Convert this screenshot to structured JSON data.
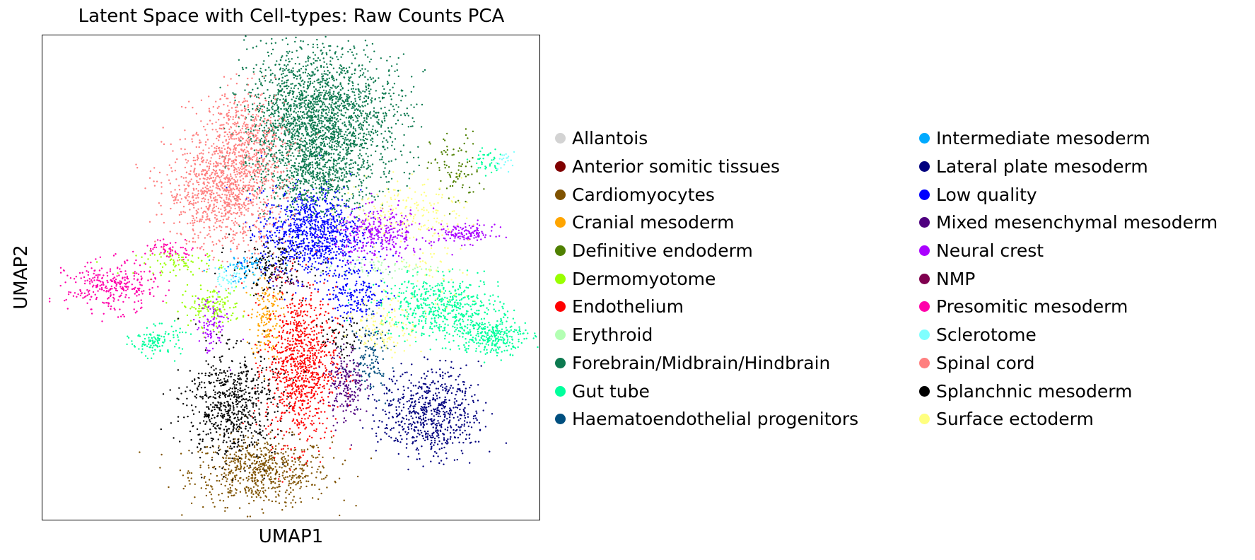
{
  "chart_data": {
    "type": "scatter",
    "title": "Latent Space with Cell-types: Raw Counts PCA",
    "xlabel": "UMAP1",
    "ylabel": "UMAP2",
    "xlim": [
      0,
      1
    ],
    "ylim": [
      0,
      1
    ],
    "grid": false,
    "ticks": false,
    "legend_position": "right",
    "legend_columns": 2,
    "series": [
      {
        "name": "Allantois",
        "color": "#d3d3d3",
        "clusters": []
      },
      {
        "name": "Anterior somitic tissues",
        "color": "#800000",
        "clusters": []
      },
      {
        "name": "Cardiomyocytes",
        "color": "#7f5200",
        "clusters": [
          {
            "x": 0.44,
            "y": 0.1,
            "sx": 0.07,
            "sy": 0.035,
            "n": 650
          }
        ]
      },
      {
        "name": "Cranial mesoderm",
        "color": "#ffa500",
        "clusters": [
          {
            "x": 0.45,
            "y": 0.42,
            "sx": 0.015,
            "sy": 0.045,
            "n": 160
          }
        ]
      },
      {
        "name": "Definitive endoderm",
        "color": "#4f8000",
        "clusters": [
          {
            "x": 0.83,
            "y": 0.72,
            "sx": 0.025,
            "sy": 0.04,
            "n": 90
          }
        ]
      },
      {
        "name": "Dermomyotome",
        "color": "#99ff00",
        "clusters": [
          {
            "x": 0.34,
            "y": 0.44,
            "sx": 0.03,
            "sy": 0.02,
            "n": 140
          },
          {
            "x": 0.28,
            "y": 0.53,
            "sx": 0.045,
            "sy": 0.012,
            "n": 80
          }
        ]
      },
      {
        "name": "Endothelium",
        "color": "#ff0000",
        "clusters": [
          {
            "x": 0.52,
            "y": 0.32,
            "sx": 0.035,
            "sy": 0.08,
            "n": 950
          }
        ]
      },
      {
        "name": "Erythroid",
        "color": "#b3ffb3",
        "clusters": [
          {
            "x": 0.67,
            "y": 0.52,
            "sx": 0.06,
            "sy": 0.01,
            "n": 80
          }
        ]
      },
      {
        "name": "Forebrain/Midbrain/Hindbrain",
        "color": "#0d7a50",
        "clusters": [
          {
            "x": 0.52,
            "y": 0.82,
            "sx": 0.055,
            "sy": 0.08,
            "n": 1500
          },
          {
            "x": 0.62,
            "y": 0.83,
            "sx": 0.06,
            "sy": 0.07,
            "n": 800
          },
          {
            "x": 0.56,
            "y": 0.7,
            "sx": 0.05,
            "sy": 0.04,
            "n": 400
          }
        ]
      },
      {
        "name": "Gut tube",
        "color": "#00ff9c",
        "clusters": [
          {
            "x": 0.8,
            "y": 0.44,
            "sx": 0.06,
            "sy": 0.03,
            "n": 520
          },
          {
            "x": 0.9,
            "y": 0.38,
            "sx": 0.035,
            "sy": 0.02,
            "n": 300
          },
          {
            "x": 0.23,
            "y": 0.37,
            "sx": 0.025,
            "sy": 0.015,
            "n": 120
          },
          {
            "x": 0.89,
            "y": 0.74,
            "sx": 0.015,
            "sy": 0.015,
            "n": 40
          }
        ]
      },
      {
        "name": "Haematoendothelial progenitors",
        "color": "#004f7f",
        "clusters": [
          {
            "x": 0.66,
            "y": 0.34,
            "sx": 0.02,
            "sy": 0.04,
            "n": 130
          }
        ]
      },
      {
        "name": "Intermediate mesoderm",
        "color": "#00aaff",
        "clusters": [
          {
            "x": 0.41,
            "y": 0.52,
            "sx": 0.03,
            "sy": 0.015,
            "n": 80
          }
        ]
      },
      {
        "name": "Lateral plate mesoderm",
        "color": "#00007f",
        "clusters": [
          {
            "x": 0.78,
            "y": 0.22,
            "sx": 0.05,
            "sy": 0.045,
            "n": 650
          }
        ]
      },
      {
        "name": "Low quality",
        "color": "#0000ff",
        "clusters": [
          {
            "x": 0.54,
            "y": 0.59,
            "sx": 0.05,
            "sy": 0.045,
            "n": 900
          },
          {
            "x": 0.63,
            "y": 0.47,
            "sx": 0.03,
            "sy": 0.03,
            "n": 200
          }
        ]
      },
      {
        "name": "Mixed mesenchymal mesoderm",
        "color": "#4f007f",
        "clusters": [
          {
            "x": 0.61,
            "y": 0.28,
            "sx": 0.018,
            "sy": 0.04,
            "n": 200
          }
        ]
      },
      {
        "name": "Neural crest",
        "color": "#aa00ff",
        "clusters": [
          {
            "x": 0.68,
            "y": 0.59,
            "sx": 0.045,
            "sy": 0.025,
            "n": 320
          },
          {
            "x": 0.85,
            "y": 0.59,
            "sx": 0.03,
            "sy": 0.01,
            "n": 130
          },
          {
            "x": 0.34,
            "y": 0.4,
            "sx": 0.015,
            "sy": 0.03,
            "n": 90
          }
        ]
      },
      {
        "name": "NMP",
        "color": "#7f004f",
        "clusters": [
          {
            "x": 0.49,
            "y": 0.5,
            "sx": 0.02,
            "sy": 0.015,
            "n": 30
          }
        ]
      },
      {
        "name": "Presomitic mesoderm",
        "color": "#ff00aa",
        "clusters": [
          {
            "x": 0.14,
            "y": 0.48,
            "sx": 0.045,
            "sy": 0.025,
            "n": 300
          },
          {
            "x": 0.26,
            "y": 0.56,
            "sx": 0.03,
            "sy": 0.01,
            "n": 60
          }
        ]
      },
      {
        "name": "Sclerotome",
        "color": "#7fffff",
        "clusters": [
          {
            "x": 0.38,
            "y": 0.5,
            "sx": 0.02,
            "sy": 0.015,
            "n": 50
          },
          {
            "x": 0.93,
            "y": 0.74,
            "sx": 0.01,
            "sy": 0.01,
            "n": 20
          }
        ]
      },
      {
        "name": "Spinal cord",
        "color": "#ff7f7f",
        "clusters": [
          {
            "x": 0.37,
            "y": 0.68,
            "sx": 0.06,
            "sy": 0.06,
            "n": 1100
          },
          {
            "x": 0.41,
            "y": 0.79,
            "sx": 0.04,
            "sy": 0.05,
            "n": 400
          }
        ]
      },
      {
        "name": "Splanchnic mesoderm",
        "color": "#000000",
        "clusters": [
          {
            "x": 0.38,
            "y": 0.24,
            "sx": 0.045,
            "sy": 0.055,
            "n": 700
          },
          {
            "x": 0.46,
            "y": 0.52,
            "sx": 0.04,
            "sy": 0.03,
            "n": 150
          },
          {
            "x": 0.6,
            "y": 0.38,
            "sx": 0.02,
            "sy": 0.02,
            "n": 60
          }
        ]
      },
      {
        "name": "Surface ectoderm",
        "color": "#ffff7f",
        "clusters": [
          {
            "x": 0.72,
            "y": 0.64,
            "sx": 0.06,
            "sy": 0.03,
            "n": 180
          },
          {
            "x": 0.69,
            "y": 0.4,
            "sx": 0.03,
            "sy": 0.03,
            "n": 130
          },
          {
            "x": 0.79,
            "y": 0.53,
            "sx": 0.04,
            "sy": 0.06,
            "n": 70
          }
        ]
      }
    ]
  }
}
